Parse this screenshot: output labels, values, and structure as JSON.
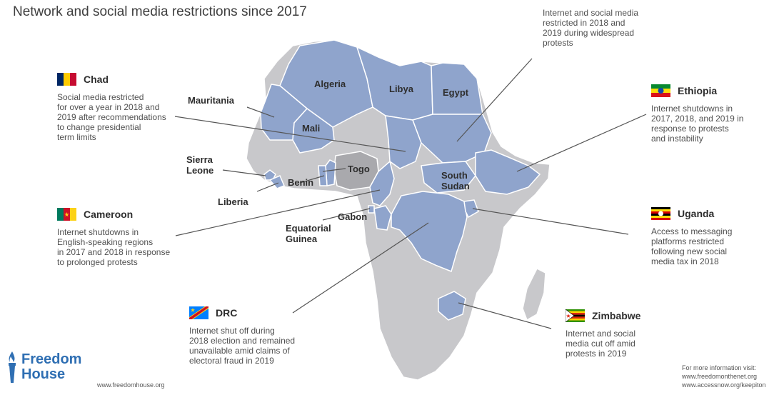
{
  "title": "Network and social media restrictions since 2017",
  "colors": {
    "highlight": "#8fa4cc",
    "highlight_stroke": "#ffffff",
    "other_country": "#c8c8cb",
    "dark_country": "#a9a9ad",
    "leader_line": "#555555",
    "brand": "#2f6fb3"
  },
  "top_note": "Internet and social media\nrestricted in 2018 and\n2019 during widespread\nprotests",
  "countries": [
    {
      "name": "Chad",
      "flag": "chad-flag",
      "desc": "Social media restricted\nfor over a year in 2018 and\n2019 after recommendations\nto change presidential\nterm limits"
    },
    {
      "name": "Ethiopia",
      "flag": "ethiopia-flag",
      "desc": "Internet shutdowns in\n2017, 2018, and 2019 in\nresponse to protests\nand instability"
    },
    {
      "name": "Cameroon",
      "flag": "cameroon-flag",
      "desc": "Internet shutdowns in\nEnglish-speaking regions\nin 2017 and 2018 in response\nto prolonged protests"
    },
    {
      "name": "Uganda",
      "flag": "uganda-flag",
      "desc": "Access to messaging\nplatforms restricted\nfollowing new social\nmedia tax in 2018"
    },
    {
      "name": "DRC",
      "flag": "drc-flag",
      "desc": "Internet shut off during\n2018 election and remained\nunavailable amid claims of\nelectoral fraud in 2019"
    },
    {
      "name": "Zimbabwe",
      "flag": "zimbabwe-flag",
      "desc": "Internet and social\nmedia cut off amid\nprotests in 2019"
    }
  ],
  "map_labels": {
    "algeria": "Algeria",
    "libya": "Libya",
    "egypt": "Egypt",
    "mauritania": "Mauritania",
    "mali": "Mali",
    "sierra_leone": "Sierra\nLeone",
    "benin": "Benin",
    "togo": "Togo",
    "liberia": "Liberia",
    "south_sudan": "South\nSudan",
    "equatorial_guinea": "Equatorial\nGuinea",
    "gabon": "Gabon"
  },
  "footer": {
    "logo": "Freedom\nHouse",
    "logo_icon": "torch-icon",
    "website": "www.freedomhouse.org",
    "more_info": "For more information visit:\nwww.freedomonthenet.org\nwww.accessnow.org/keepiton"
  }
}
